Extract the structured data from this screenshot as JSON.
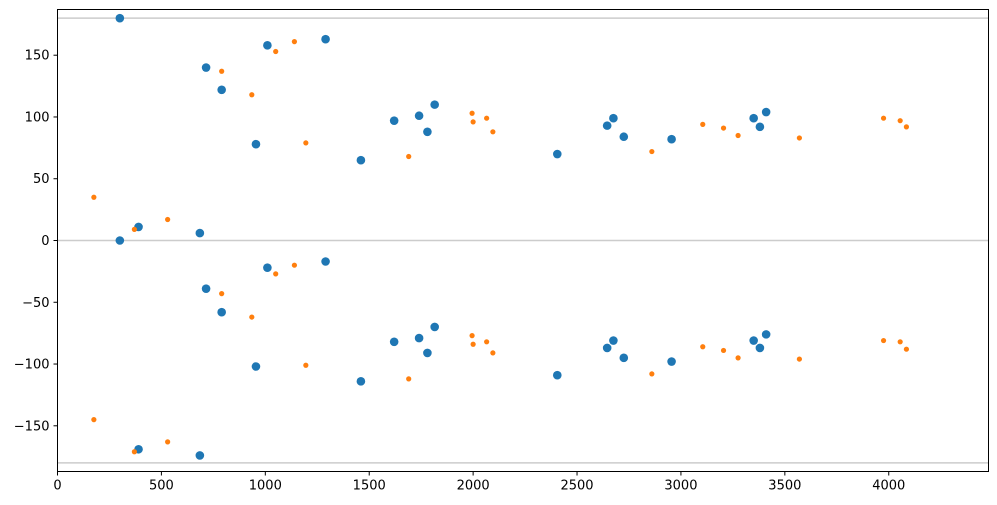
{
  "chart_data": {
    "type": "scatter",
    "title": "",
    "xlabel": "",
    "ylabel": "",
    "xlim": [
      0,
      4480
    ],
    "ylim": [
      -187,
      187
    ],
    "grid": false,
    "x_ticks": [
      {
        "value": 0,
        "label": "0"
      },
      {
        "value": 500,
        "label": "500"
      },
      {
        "value": 1000,
        "label": "1000"
      },
      {
        "value": 1500,
        "label": "1500"
      },
      {
        "value": 2000,
        "label": "2000"
      },
      {
        "value": 2500,
        "label": "2500"
      },
      {
        "value": 3000,
        "label": "3000"
      },
      {
        "value": 3500,
        "label": "3500"
      },
      {
        "value": 4000,
        "label": "4000"
      }
    ],
    "y_ticks": [
      {
        "value": -150,
        "label": "−150"
      },
      {
        "value": -100,
        "label": "−100"
      },
      {
        "value": -50,
        "label": "−50"
      },
      {
        "value": 0,
        "label": "0"
      },
      {
        "value": 50,
        "label": "50"
      },
      {
        "value": 100,
        "label": "100"
      },
      {
        "value": 150,
        "label": "150"
      }
    ],
    "reference_lines": [
      {
        "axis": "y",
        "value": 180,
        "color": "#cccccc"
      },
      {
        "axis": "y",
        "value": 0,
        "color": "#cccccc"
      },
      {
        "axis": "y",
        "value": -180,
        "color": "#cccccc"
      }
    ],
    "series": [
      {
        "color": "#1f77b4",
        "marker": "large-dot",
        "points": [
          [
            300,
            180
          ],
          [
            715,
            140
          ],
          [
            790,
            122
          ],
          [
            1010,
            158
          ],
          [
            955,
            78
          ],
          [
            1290,
            163
          ],
          [
            1460,
            65
          ],
          [
            1620,
            97
          ],
          [
            1740,
            101
          ],
          [
            1780,
            88
          ],
          [
            1815,
            110
          ],
          [
            2405,
            70
          ],
          [
            2645,
            93
          ],
          [
            2675,
            99
          ],
          [
            2725,
            84
          ],
          [
            2955,
            82
          ],
          [
            3350,
            99
          ],
          [
            3380,
            92
          ],
          [
            3410,
            104
          ],
          [
            300,
            0
          ],
          [
            390,
            11
          ],
          [
            685,
            6
          ],
          [
            715,
            -39
          ],
          [
            790,
            -58
          ],
          [
            955,
            -102
          ],
          [
            1010,
            -22
          ],
          [
            1290,
            -17
          ],
          [
            1460,
            -114
          ],
          [
            1620,
            -82
          ],
          [
            1740,
            -79
          ],
          [
            1780,
            -91
          ],
          [
            1815,
            -70
          ],
          [
            2405,
            -109
          ],
          [
            2645,
            -87
          ],
          [
            2675,
            -81
          ],
          [
            2725,
            -95
          ],
          [
            2955,
            -98
          ],
          [
            3350,
            -81
          ],
          [
            3380,
            -87
          ],
          [
            3410,
            -76
          ],
          [
            390,
            -169
          ],
          [
            685,
            -174
          ]
        ]
      },
      {
        "color": "#ff7f0e",
        "marker": "small-dot",
        "points": [
          [
            175,
            35
          ],
          [
            370,
            9
          ],
          [
            530,
            17
          ],
          [
            790,
            137
          ],
          [
            935,
            118
          ],
          [
            1050,
            153
          ],
          [
            1140,
            161
          ],
          [
            1195,
            79
          ],
          [
            1690,
            68
          ],
          [
            1995,
            103
          ],
          [
            2000,
            96
          ],
          [
            2065,
            99
          ],
          [
            2095,
            88
          ],
          [
            2860,
            72
          ],
          [
            3105,
            94
          ],
          [
            3205,
            91
          ],
          [
            3275,
            85
          ],
          [
            3570,
            83
          ],
          [
            3975,
            99
          ],
          [
            4055,
            97
          ],
          [
            4085,
            92
          ],
          [
            790,
            -43
          ],
          [
            935,
            -62
          ],
          [
            1050,
            -27
          ],
          [
            1140,
            -20
          ],
          [
            1195,
            -101
          ],
          [
            1690,
            -112
          ],
          [
            1995,
            -77
          ],
          [
            2000,
            -84
          ],
          [
            2065,
            -82
          ],
          [
            2095,
            -91
          ],
          [
            2860,
            -108
          ],
          [
            3105,
            -86
          ],
          [
            3205,
            -89
          ],
          [
            3275,
            -95
          ],
          [
            3570,
            -96
          ],
          [
            3975,
            -81
          ],
          [
            4055,
            -82
          ],
          [
            4085,
            -88
          ],
          [
            175,
            -145
          ],
          [
            370,
            -171
          ],
          [
            530,
            -163
          ]
        ]
      }
    ]
  }
}
